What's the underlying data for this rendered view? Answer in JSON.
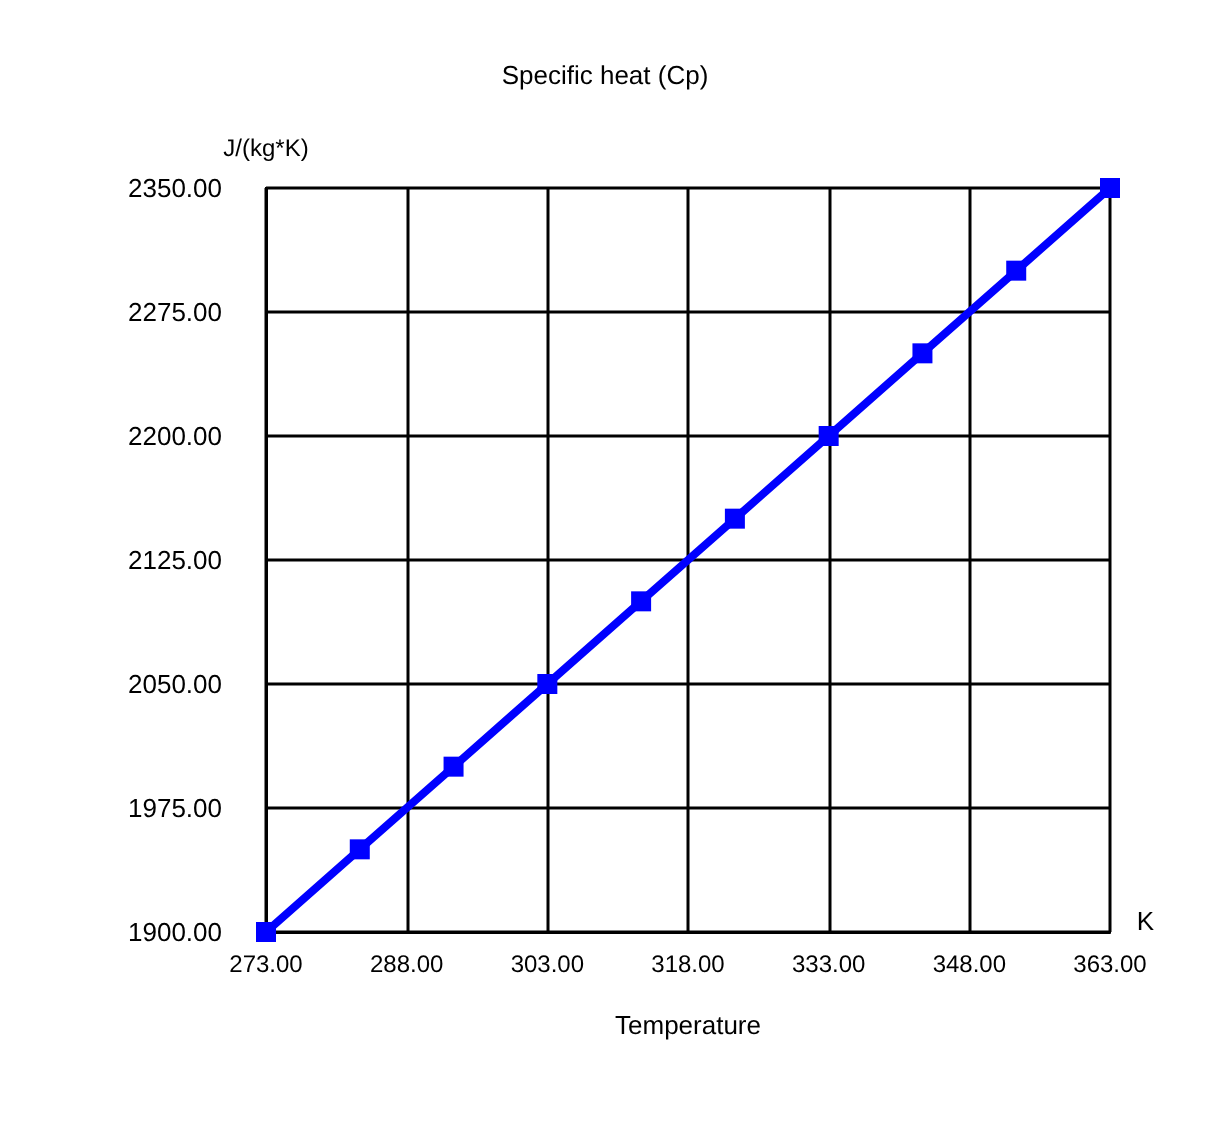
{
  "chart_data": {
    "type": "line",
    "title": "Specific heat (Cp)",
    "xlabel": "Temperature",
    "ylabel": "J/(kg*K)",
    "annotations": [
      "K"
    ],
    "x": [
      273,
      283,
      293,
      303,
      313,
      323,
      333,
      343,
      353,
      363
    ],
    "series": [
      {
        "color": "#0000ff",
        "values": [
          1900,
          1950,
          2000,
          2050,
          2100,
          2150,
          2200,
          2250,
          2300,
          2350
        ]
      }
    ],
    "xlim": [
      273,
      363
    ],
    "xticks": [
      {
        "value": 273,
        "label": "273.00"
      },
      {
        "value": 288,
        "label": "288.00"
      },
      {
        "value": 303,
        "label": "303.00"
      },
      {
        "value": 318,
        "label": "318.00"
      },
      {
        "value": 333,
        "label": "333.00"
      },
      {
        "value": 348,
        "label": "348.00"
      },
      {
        "value": 363,
        "label": "363.00"
      }
    ],
    "ylim": [
      1900,
      2350
    ],
    "yticks": [
      {
        "value": 1900,
        "label": "1900.00"
      },
      {
        "value": 1975,
        "label": "1975.00"
      },
      {
        "value": 2050,
        "label": "2050.00"
      },
      {
        "value": 2125,
        "label": "2125.00"
      },
      {
        "value": 2200,
        "label": "2200.00"
      },
      {
        "value": 2275,
        "label": "2275.00"
      },
      {
        "value": 2350,
        "label": "2350.00"
      }
    ],
    "grid": true,
    "marker": "square",
    "line_style": "solid"
  }
}
